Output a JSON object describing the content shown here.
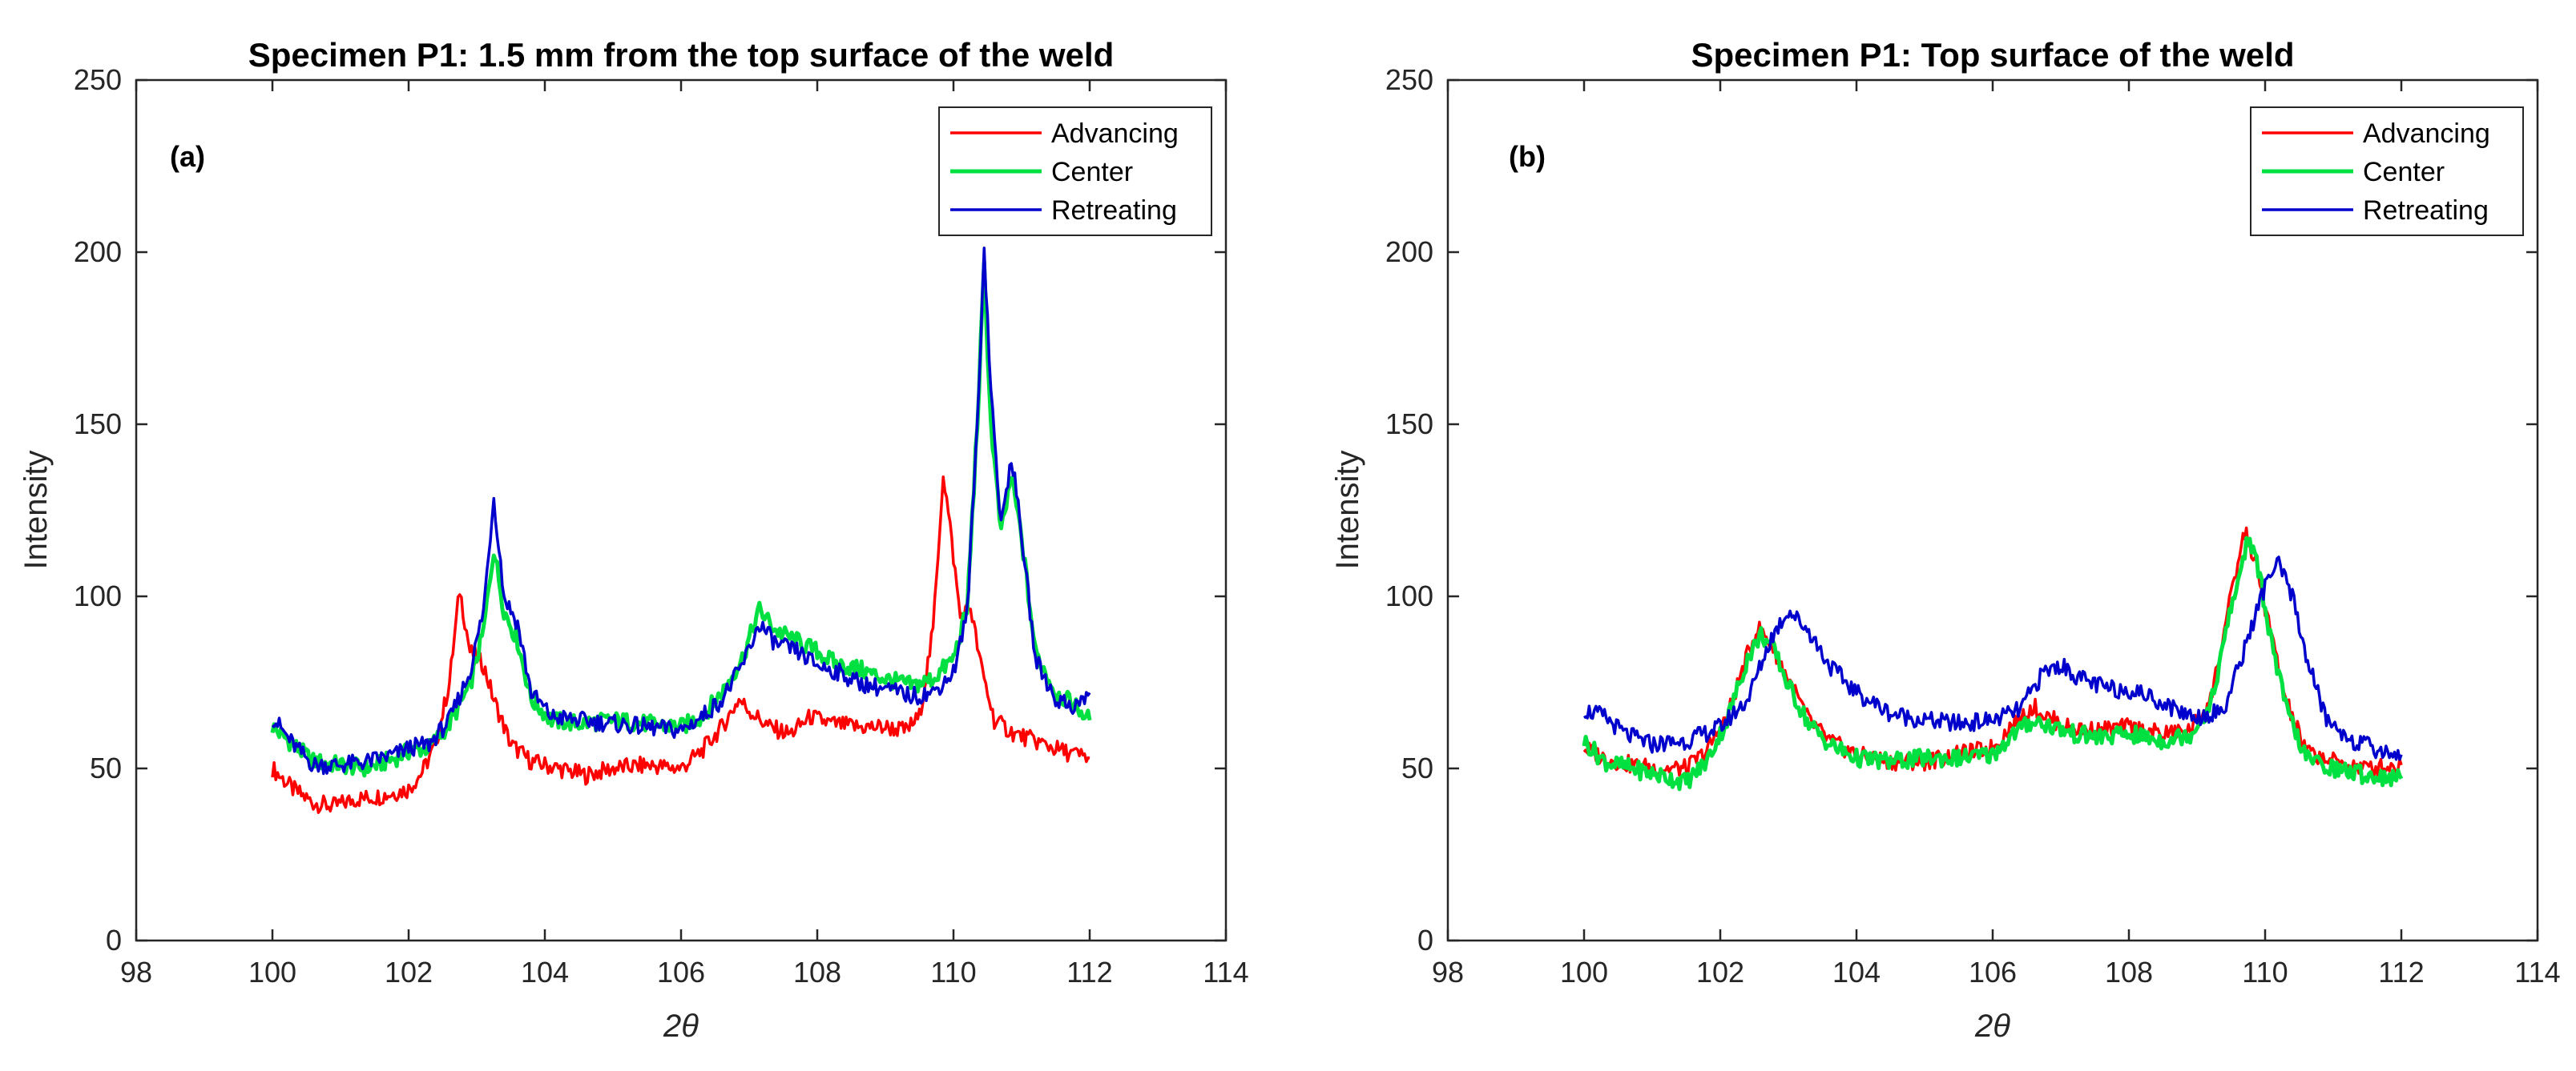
{
  "chart_data": [
    {
      "type": "line",
      "panel_label": "(a)",
      "title": "Specimen P1: 1.5 mm from the top surface of the weld",
      "xlabel": "2θ",
      "ylabel": "Intensity",
      "xlim": [
        98,
        114
      ],
      "ylim": [
        0,
        250
      ],
      "xticks": [
        "98",
        "100",
        "102",
        "104",
        "106",
        "108",
        "110",
        "112",
        "114"
      ],
      "yticks": [
        "0",
        "50",
        "100",
        "150",
        "200",
        "250"
      ],
      "grid": false,
      "legend": "top-right",
      "series": [
        {
          "name": "Advancing",
          "color": "#ff0000",
          "points": [
            [
              100,
              50
            ],
            [
              100.3,
              44
            ],
            [
              100.6,
              40
            ],
            [
              100.9,
              39
            ],
            [
              101.2,
              41
            ],
            [
              101.6,
              42
            ],
            [
              102,
              44
            ],
            [
              102.2,
              49
            ],
            [
              102.4,
              57
            ],
            [
              102.6,
              75
            ],
            [
              102.75,
              102
            ],
            [
              102.9,
              84
            ],
            [
              103.1,
              80
            ],
            [
              103.25,
              70
            ],
            [
              103.5,
              57
            ],
            [
              103.8,
              52
            ],
            [
              104.2,
              50
            ],
            [
              104.6,
              48
            ],
            [
              105,
              50
            ],
            [
              105.5,
              51
            ],
            [
              106,
              50
            ],
            [
              106.3,
              55
            ],
            [
              106.6,
              62
            ],
            [
              106.85,
              70
            ],
            [
              107.05,
              66
            ],
            [
              107.3,
              62
            ],
            [
              107.6,
              60
            ],
            [
              107.9,
              65
            ],
            [
              108.2,
              63
            ],
            [
              108.6,
              62
            ],
            [
              109,
              62
            ],
            [
              109.3,
              61
            ],
            [
              109.5,
              65
            ],
            [
              109.7,
              90
            ],
            [
              109.85,
              136
            ],
            [
              109.95,
              120
            ],
            [
              110.1,
              94
            ],
            [
              110.25,
              97
            ],
            [
              110.4,
              80
            ],
            [
              110.6,
              64
            ],
            [
              110.9,
              60
            ],
            [
              111.2,
              58
            ],
            [
              111.6,
              55
            ],
            [
              112,
              53
            ]
          ]
        },
        {
          "name": "Center",
          "color": "#00e040",
          "points": [
            [
              100,
              62
            ],
            [
              100.3,
              57
            ],
            [
              100.6,
              52
            ],
            [
              101,
              51
            ],
            [
              101.4,
              50
            ],
            [
              101.8,
              53
            ],
            [
              102,
              55
            ],
            [
              102.3,
              56
            ],
            [
              102.6,
              63
            ],
            [
              102.9,
              74
            ],
            [
              103.1,
              90
            ],
            [
              103.25,
              114
            ],
            [
              103.4,
              96
            ],
            [
              103.6,
              87
            ],
            [
              103.8,
              70
            ],
            [
              104.1,
              64
            ],
            [
              104.5,
              63
            ],
            [
              105,
              64
            ],
            [
              105.5,
              63
            ],
            [
              106,
              62
            ],
            [
              106.3,
              65
            ],
            [
              106.6,
              72
            ],
            [
              106.9,
              82
            ],
            [
              107.15,
              96
            ],
            [
              107.4,
              90
            ],
            [
              107.7,
              87
            ],
            [
              108,
              84
            ],
            [
              108.3,
              80
            ],
            [
              108.6,
              79
            ],
            [
              109,
              76
            ],
            [
              109.4,
              74
            ],
            [
              109.7,
              76
            ],
            [
              110,
              82
            ],
            [
              110.2,
              96
            ],
            [
              110.35,
              150
            ],
            [
              110.45,
              195
            ],
            [
              110.55,
              150
            ],
            [
              110.7,
              118
            ],
            [
              110.85,
              135
            ],
            [
              111,
              117
            ],
            [
              111.2,
              84
            ],
            [
              111.5,
              72
            ],
            [
              111.8,
              68
            ],
            [
              112,
              64
            ]
          ]
        },
        {
          "name": "Retreating",
          "color": "#0000cc",
          "points": [
            [
              100,
              65
            ],
            [
              100.3,
              57
            ],
            [
              100.6,
              51
            ],
            [
              101,
              51
            ],
            [
              101.4,
              52
            ],
            [
              101.8,
              54
            ],
            [
              102,
              56
            ],
            [
              102.3,
              57
            ],
            [
              102.6,
              64
            ],
            [
              102.9,
              78
            ],
            [
              103.1,
              96
            ],
            [
              103.25,
              129
            ],
            [
              103.4,
              100
            ],
            [
              103.6,
              92
            ],
            [
              103.8,
              72
            ],
            [
              104.1,
              65
            ],
            [
              104.5,
              64
            ],
            [
              105,
              63
            ],
            [
              105.5,
              62
            ],
            [
              106,
              61
            ],
            [
              106.3,
              65
            ],
            [
              106.6,
              70
            ],
            [
              106.9,
              80
            ],
            [
              107.15,
              92
            ],
            [
              107.4,
              86
            ],
            [
              107.7,
              84
            ],
            [
              108,
              80
            ],
            [
              108.3,
              78
            ],
            [
              108.6,
              75
            ],
            [
              109,
              73
            ],
            [
              109.4,
              71
            ],
            [
              109.7,
              72
            ],
            [
              110,
              78
            ],
            [
              110.2,
              95
            ],
            [
              110.35,
              150
            ],
            [
              110.45,
              201
            ],
            [
              110.55,
              160
            ],
            [
              110.7,
              120
            ],
            [
              110.85,
              141
            ],
            [
              111,
              118
            ],
            [
              111.2,
              82
            ],
            [
              111.5,
              70
            ],
            [
              111.8,
              68
            ],
            [
              112,
              72
            ]
          ]
        }
      ]
    },
    {
      "type": "line",
      "panel_label": "(b)",
      "title": "Specimen P1: Top surface of the weld",
      "xlabel": "2θ",
      "ylabel": "Intensity",
      "xlim": [
        98,
        114
      ],
      "ylim": [
        0,
        250
      ],
      "xticks": [
        "98",
        "100",
        "102",
        "104",
        "106",
        "108",
        "110",
        "112",
        "114"
      ],
      "yticks": [
        "0",
        "50",
        "100",
        "150",
        "200",
        "250"
      ],
      "grid": false,
      "legend": "top-right",
      "series": [
        {
          "name": "Advancing",
          "color": "#ff0000",
          "points": [
            [
              100,
              56
            ],
            [
              100.3,
              53
            ],
            [
              100.7,
              51
            ],
            [
              101.1,
              50
            ],
            [
              101.5,
              50
            ],
            [
              101.8,
              55
            ],
            [
              102.1,
              65
            ],
            [
              102.4,
              83
            ],
            [
              102.55,
              91
            ],
            [
              102.75,
              86
            ],
            [
              103,
              76
            ],
            [
              103.3,
              64
            ],
            [
              103.6,
              58
            ],
            [
              104,
              54
            ],
            [
              104.5,
              52
            ],
            [
              105,
              52
            ],
            [
              105.5,
              54
            ],
            [
              106,
              56
            ],
            [
              106.3,
              63
            ],
            [
              106.6,
              68
            ],
            [
              106.8,
              65
            ],
            [
              107.1,
              62
            ],
            [
              107.5,
              61
            ],
            [
              108,
              62
            ],
            [
              108.5,
              60
            ],
            [
              108.9,
              61
            ],
            [
              109.2,
              70
            ],
            [
              109.45,
              95
            ],
            [
              109.7,
              119
            ],
            [
              109.85,
              110
            ],
            [
              110.1,
              88
            ],
            [
              110.3,
              70
            ],
            [
              110.6,
              55
            ],
            [
              111,
              52
            ],
            [
              111.5,
              50
            ],
            [
              112,
              51
            ]
          ]
        },
        {
          "name": "Center",
          "color": "#00e040",
          "points": [
            [
              100,
              58
            ],
            [
              100.3,
              52
            ],
            [
              100.7,
              50
            ],
            [
              101.1,
              48
            ],
            [
              101.5,
              46
            ],
            [
              101.8,
              52
            ],
            [
              102.1,
              64
            ],
            [
              102.4,
              82
            ],
            [
              102.6,
              89
            ],
            [
              102.8,
              84
            ],
            [
              103,
              74
            ],
            [
              103.3,
              63
            ],
            [
              103.6,
              57
            ],
            [
              104,
              53
            ],
            [
              104.5,
              52
            ],
            [
              105,
              53
            ],
            [
              105.5,
              53
            ],
            [
              106,
              54
            ],
            [
              106.3,
              60
            ],
            [
              106.6,
              64
            ],
            [
              106.9,
              62
            ],
            [
              107.2,
              60
            ],
            [
              107.6,
              59
            ],
            [
              108,
              60
            ],
            [
              108.5,
              58
            ],
            [
              108.9,
              60
            ],
            [
              109.2,
              68
            ],
            [
              109.45,
              92
            ],
            [
              109.75,
              117
            ],
            [
              109.9,
              108
            ],
            [
              110.1,
              86
            ],
            [
              110.3,
              68
            ],
            [
              110.6,
              53
            ],
            [
              111,
              50
            ],
            [
              111.5,
              48
            ],
            [
              112,
              47
            ]
          ]
        },
        {
          "name": "Retreating",
          "color": "#0000cc",
          "points": [
            [
              100,
              67
            ],
            [
              100.3,
              65
            ],
            [
              100.6,
              60
            ],
            [
              101,
              57
            ],
            [
              101.5,
              58
            ],
            [
              102,
              62
            ],
            [
              102.4,
              70
            ],
            [
              102.75,
              88
            ],
            [
              103,
              96
            ],
            [
              103.3,
              90
            ],
            [
              103.6,
              80
            ],
            [
              104,
              72
            ],
            [
              104.5,
              66
            ],
            [
              105,
              64
            ],
            [
              105.5,
              63
            ],
            [
              106,
              64
            ],
            [
              106.4,
              67
            ],
            [
              106.75,
              78
            ],
            [
              107,
              80
            ],
            [
              107.3,
              76
            ],
            [
              107.7,
              73
            ],
            [
              108,
              73
            ],
            [
              108.3,
              71
            ],
            [
              108.7,
              67
            ],
            [
              109,
              65
            ],
            [
              109.4,
              67
            ],
            [
              109.7,
              85
            ],
            [
              109.9,
              97
            ],
            [
              110.05,
              106
            ],
            [
              110.2,
              109
            ],
            [
              110.4,
              100
            ],
            [
              110.6,
              83
            ],
            [
              110.9,
              64
            ],
            [
              111.3,
              58
            ],
            [
              111.7,
              55
            ],
            [
              112,
              54
            ]
          ]
        }
      ]
    }
  ]
}
